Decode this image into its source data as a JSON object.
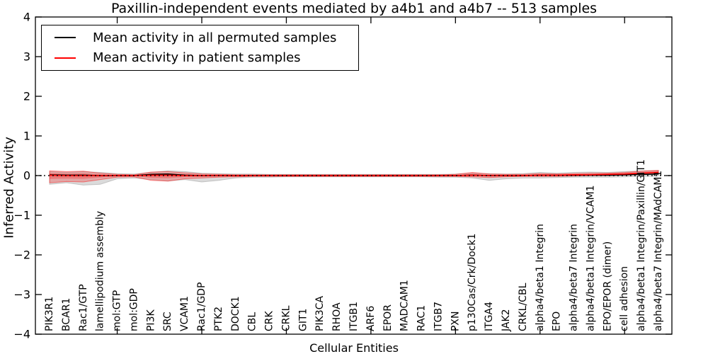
{
  "figure": {
    "background_color": "#ffffff",
    "frame_color": "#000000"
  },
  "chart_data": {
    "type": "line",
    "title": "Paxillin-independent events mediated by a4b1 and a4b7 -- 513 samples",
    "xlabel": "Cellular Entities",
    "ylabel": "Inferred Activity",
    "ylim": [
      -4,
      4
    ],
    "yticks": [
      -4,
      -3,
      -2,
      -1,
      0,
      1,
      2,
      3,
      4
    ],
    "xtick_positions": [
      5,
      10,
      15,
      20,
      25,
      30,
      35
    ],
    "grid": false,
    "legend_position": "upper-left",
    "categories": [
      "PIK3R1",
      "BCAR1",
      "Rac1/GTP",
      "lamellipodium assembly",
      "mol:GTP",
      "mol:GDP",
      "PI3K",
      "SRC",
      "VCAM1",
      "Rac1/GDP",
      "PTK2",
      "DOCK1",
      "CBL",
      "CRK",
      "CRKL",
      "GIT1",
      "PIK3CA",
      "RHOA",
      "ITGB1",
      "ARF6",
      "EPOR",
      "MADCAM1",
      "RAC1",
      "ITGB7",
      "PXN",
      "p130Cas/Crk/Dock1",
      "ITGA4",
      "JAK2",
      "CRKL/CBL",
      "alpha4/beta1 Integrin",
      "EPO",
      "alpha4/beta7 Integrin",
      "alpha4/beta1 Integrin/VCAM1",
      "EPO/EPOR (dimer)",
      "cell adhesion",
      "alpha4/beta1 Integrin/Paxillin/GIT1",
      "alpha4/beta7 Integrin/MAdCAM1"
    ],
    "series": [
      {
        "name": "Mean activity in all permuted samples",
        "color": "#000000",
        "values": [
          0.02,
          0.01,
          0.01,
          0,
          0,
          0,
          0.03,
          0.04,
          0.01,
          0,
          0,
          0,
          0,
          0,
          0,
          0,
          0,
          0,
          0,
          0,
          0,
          0,
          0,
          0,
          0,
          0.01,
          0,
          0,
          0,
          0.01,
          0.01,
          0.01,
          0.01,
          0.01,
          0.02,
          0.03,
          0.04
        ]
      },
      {
        "name": "Mean activity in patient samples",
        "color": "#ff0000",
        "values": [
          0.01,
          0,
          0,
          0,
          0,
          0,
          0.01,
          0.01,
          0,
          0,
          0,
          0,
          0,
          0,
          0,
          0,
          0,
          0,
          0,
          0,
          0,
          0,
          0,
          0,
          0,
          0.01,
          0,
          0,
          0,
          0.01,
          0.01,
          0.02,
          0.02,
          0.03,
          0.04,
          0.06,
          0.08
        ]
      }
    ],
    "bands": [
      {
        "name": "permuted-samples-spread",
        "color": "#999999",
        "alpha": 0.35,
        "upper": [
          0.1,
          0.08,
          0.1,
          0.08,
          0.05,
          0.04,
          0.08,
          0.12,
          0.1,
          0.06,
          0.05,
          0.04,
          0.04,
          0.03,
          0.03,
          0.03,
          0.03,
          0.03,
          0.03,
          0.03,
          0.03,
          0.03,
          0.03,
          0.03,
          0.04,
          0.06,
          0.05,
          0.04,
          0.05,
          0.08,
          0.06,
          0.08,
          0.09,
          0.08,
          0.1,
          0.12,
          0.13
        ],
        "lower": [
          -0.22,
          -0.18,
          -0.24,
          -0.22,
          -0.08,
          -0.06,
          -0.1,
          -0.14,
          -0.1,
          -0.16,
          -0.12,
          -0.06,
          -0.04,
          -0.04,
          -0.03,
          -0.03,
          -0.03,
          -0.03,
          -0.03,
          -0.03,
          -0.03,
          -0.03,
          -0.03,
          -0.04,
          -0.04,
          -0.06,
          -0.12,
          -0.08,
          -0.06,
          -0.06,
          -0.05,
          -0.04,
          -0.04,
          -0.04,
          -0.03,
          -0.02,
          -0.01
        ]
      },
      {
        "name": "patient-samples-spread",
        "color": "#ff0000",
        "alpha": 0.3,
        "upper": [
          0.12,
          0.1,
          0.11,
          0.06,
          0.03,
          0.02,
          0.09,
          0.1,
          0.07,
          0.04,
          0.03,
          0.02,
          0.02,
          0.02,
          0.02,
          0.02,
          0.02,
          0.02,
          0.02,
          0.02,
          0.02,
          0.02,
          0.02,
          0.02,
          0.03,
          0.08,
          0.04,
          0.03,
          0.03,
          0.05,
          0.04,
          0.05,
          0.06,
          0.06,
          0.08,
          0.11,
          0.13
        ],
        "lower": [
          -0.18,
          -0.15,
          -0.16,
          -0.1,
          -0.04,
          -0.03,
          -0.12,
          -0.14,
          -0.08,
          -0.06,
          -0.04,
          -0.03,
          -0.02,
          -0.02,
          -0.02,
          -0.02,
          -0.02,
          -0.02,
          -0.02,
          -0.02,
          -0.02,
          -0.02,
          -0.02,
          -0.02,
          -0.02,
          -0.03,
          -0.05,
          -0.03,
          -0.02,
          -0.02,
          -0.02,
          -0.01,
          0,
          0,
          0.01,
          0.03,
          0.04
        ]
      }
    ],
    "zero_line": {
      "y": 0,
      "style": "dotted",
      "color": "#000000"
    }
  }
}
